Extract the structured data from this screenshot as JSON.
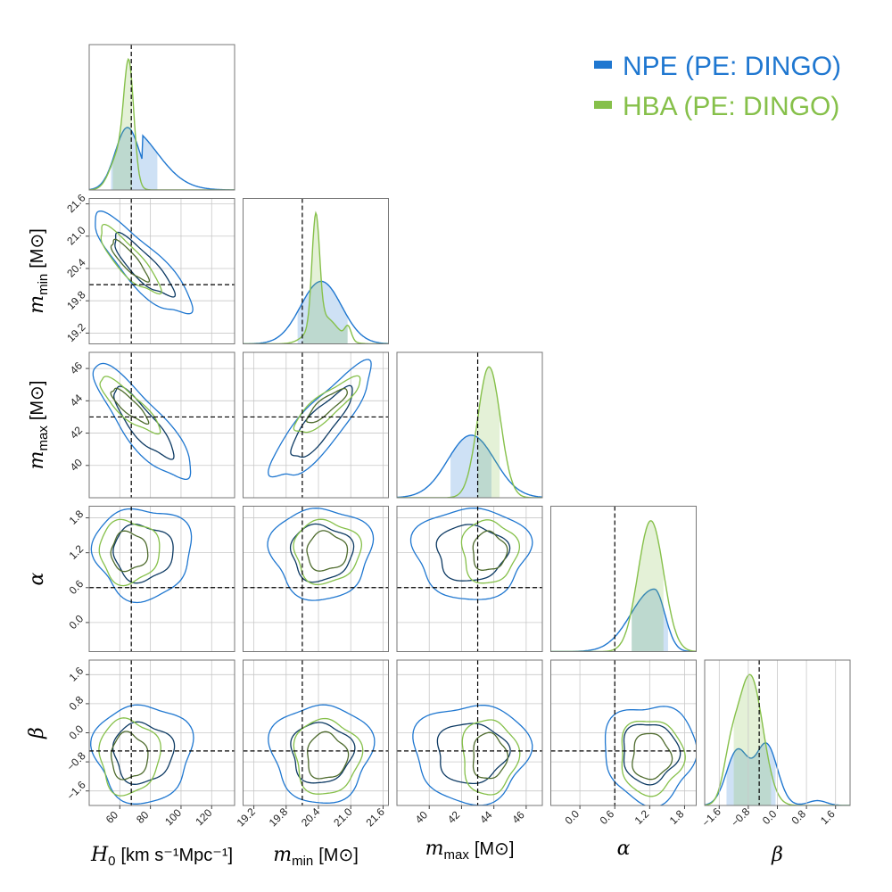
{
  "chart_data": {
    "type": "corner",
    "title": "",
    "parameters": [
      {
        "key": "H0",
        "symbol": "H",
        "sub": "0",
        "unit": "[km s⁻¹Mpc⁻¹]",
        "range": [
          40,
          135
        ],
        "ticks": [
          60,
          80,
          100,
          120
        ],
        "truth": 67.5
      },
      {
        "key": "mmin",
        "symbol": "m",
        "sub": "min",
        "unit": "[M⊙]",
        "range": [
          19.0,
          21.7
        ],
        "ticks": [
          19.2,
          19.8,
          20.4,
          21.0,
          21.6
        ],
        "truth": 20.1
      },
      {
        "key": "mmax",
        "symbol": "m",
        "sub": "max",
        "unit": "[M⊙]",
        "range": [
          38.0,
          47.0
        ],
        "ticks": [
          40,
          42,
          44,
          46
        ],
        "truth": 43.0
      },
      {
        "key": "alpha",
        "symbol": "α",
        "sub": "",
        "unit": "",
        "range": [
          -0.5,
          2.0
        ],
        "ticks": [
          0.0,
          0.6,
          1.2,
          1.8
        ],
        "truth": 0.6
      },
      {
        "key": "beta",
        "symbol": "β",
        "sub": "",
        "unit": "",
        "range": [
          -2.0,
          2.0
        ],
        "ticks": [
          -1.6,
          -0.8,
          0.0,
          0.8,
          1.6
        ],
        "truth": -0.5
      }
    ],
    "tick_labels": {
      "H0": [
        "60",
        "80",
        "100",
        "120"
      ],
      "mmin": [
        "19.2",
        "19.8",
        "20.4",
        "21.0",
        "21.6"
      ],
      "mmax": [
        "40",
        "42",
        "44",
        "46"
      ],
      "alpha": [
        "0.0",
        "0.6",
        "1.2",
        "1.8"
      ],
      "beta": [
        "−1.6",
        "−0.8",
        "0.0",
        "0.8",
        "1.6"
      ]
    },
    "series": [
      {
        "name": "NPE (PE: DINGO)",
        "color": "#1f77d0",
        "fill": "#aecbf0",
        "inner_color": "#0d3a63",
        "means": {
          "H0": 75,
          "mmin": 20.45,
          "mmax": 42.6,
          "alpha": 1.2,
          "beta": -0.55
        },
        "sigmas": {
          "H0": 13,
          "mmin": 0.38,
          "mmax": 1.45,
          "alpha": 0.32,
          "beta": 0.55
        },
        "correlations": {
          "H0-mmin": -0.85,
          "H0-mmax": -0.85,
          "mmin-mmax": 0.85
        },
        "credible_interval": {
          "H0": [
            54,
            85
          ],
          "mmin": [
            20.0,
            20.95
          ],
          "mmax": [
            41.3,
            43.9
          ],
          "alpha": [
            0.88,
            1.52
          ],
          "beta": [
            -1.42,
            -0.05
          ]
        }
      },
      {
        "name": "HBA (PE: DINGO)",
        "color": "#86c04a",
        "fill": "#cfe8b3",
        "inner_color": "#4e6b2d",
        "means": {
          "H0": 66,
          "mmin": 20.55,
          "mmax": 43.7,
          "alpha": 1.22,
          "beta": -0.65
        },
        "sigmas": {
          "H0": 8,
          "mmin": 0.25,
          "mmax": 0.7,
          "alpha": 0.22,
          "beta": 0.42
        },
        "correlations": {
          "H0-mmin": -0.85,
          "H0-mmax": -0.85,
          "mmin-mmax": 0.85
        },
        "credible_interval": {
          "H0": [
            55,
            68
          ],
          "mmin": [
            20.1,
            20.95
          ],
          "mmax": [
            43.0,
            44.4
          ],
          "alpha": [
            0.88,
            1.45
          ],
          "beta": [
            -1.22,
            -0.15
          ]
        }
      }
    ],
    "legend": {
      "placement": "top-right",
      "entries": [
        "NPE (PE: DINGO)",
        "HBA (PE: DINGO)"
      ]
    },
    "grid": true,
    "truth_lines": "dashed black"
  }
}
